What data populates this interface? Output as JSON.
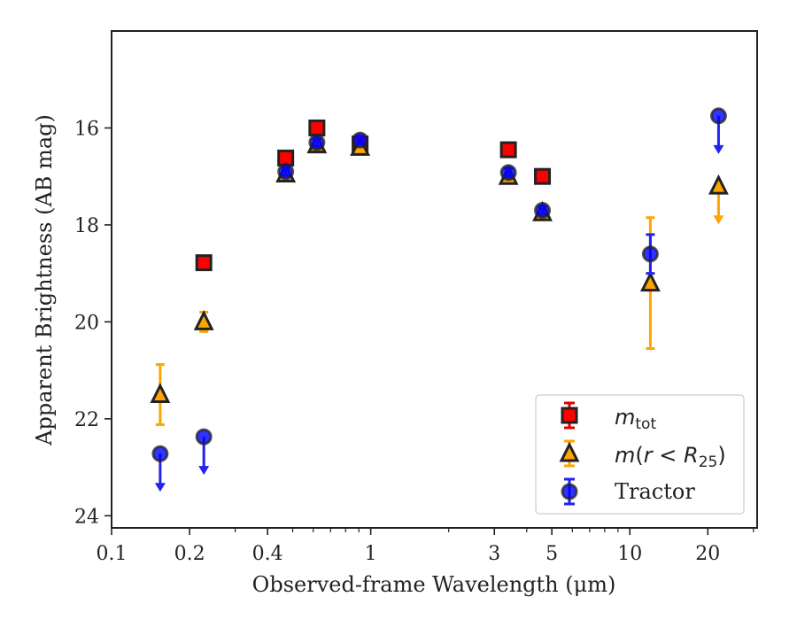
{
  "chart_data": {
    "type": "scatter",
    "xlabel": "Observed-frame Wavelength (μm)",
    "ylabel": "Apparent Brightness (AB mag)",
    "x_scale": "log",
    "xlim": [
      0.1,
      31
    ],
    "ylim": [
      24.25,
      14.0
    ],
    "x_tick_labels": [
      "0.1",
      "0.2",
      "0.4",
      "1",
      "3",
      "5",
      "10",
      "20"
    ],
    "y_tick_labels": [
      "16",
      "18",
      "20",
      "22",
      "24"
    ],
    "legend_location": "lower-right",
    "series": [
      {
        "name": "m_tot",
        "color": "#ff0000",
        "err_color": "#dd0000",
        "marker": "square",
        "points": [
          {
            "x": 0.227,
            "y": 18.78,
            "err": 0.1
          },
          {
            "x": 0.47,
            "y": 16.62,
            "err": 0.08
          },
          {
            "x": 0.62,
            "y": 16.0,
            "err": 0.08
          },
          {
            "x": 0.91,
            "y": 16.33,
            "err": 0.08
          },
          {
            "x": 3.4,
            "y": 16.45,
            "err": 0.08
          },
          {
            "x": 4.6,
            "y": 17.0,
            "err": 0.08
          }
        ]
      },
      {
        "name": "m(r < R_25)",
        "color": "#ffa500",
        "err_color": "#ffa500",
        "marker": "triangle",
        "points": [
          {
            "x": 0.154,
            "y": 21.5,
            "err": 0.62
          },
          {
            "x": 0.227,
            "y": 20.0,
            "err": 0.2
          },
          {
            "x": 0.47,
            "y": 16.95,
            "err": 0.08
          },
          {
            "x": 0.62,
            "y": 16.35,
            "err": 0.08
          },
          {
            "x": 0.91,
            "y": 16.4,
            "err": 0.08
          },
          {
            "x": 3.4,
            "y": 17.0,
            "err": 0.08
          },
          {
            "x": 4.6,
            "y": 17.75,
            "err": 0.08
          },
          {
            "x": 12.0,
            "y": 19.2,
            "err": 1.35
          },
          {
            "x": 22.0,
            "y": 17.2,
            "upper_limit": true
          }
        ]
      },
      {
        "name": "Tractor",
        "color": "#0000ff",
        "err_color": "#2222ee",
        "marker": "circle",
        "points": [
          {
            "x": 0.154,
            "y": 22.72,
            "upper_limit": true
          },
          {
            "x": 0.227,
            "y": 22.37,
            "upper_limit": true
          },
          {
            "x": 0.47,
            "y": 16.9,
            "err": 0.08
          },
          {
            "x": 0.62,
            "y": 16.3,
            "err": 0.08
          },
          {
            "x": 0.91,
            "y": 16.25,
            "err": 0.08
          },
          {
            "x": 3.4,
            "y": 16.92,
            "err": 0.08
          },
          {
            "x": 4.6,
            "y": 17.7,
            "err": 0.08
          },
          {
            "x": 12.0,
            "y": 18.6,
            "err": 0.4
          },
          {
            "x": 22.0,
            "y": 15.75,
            "upper_limit": true
          }
        ]
      }
    ]
  }
}
